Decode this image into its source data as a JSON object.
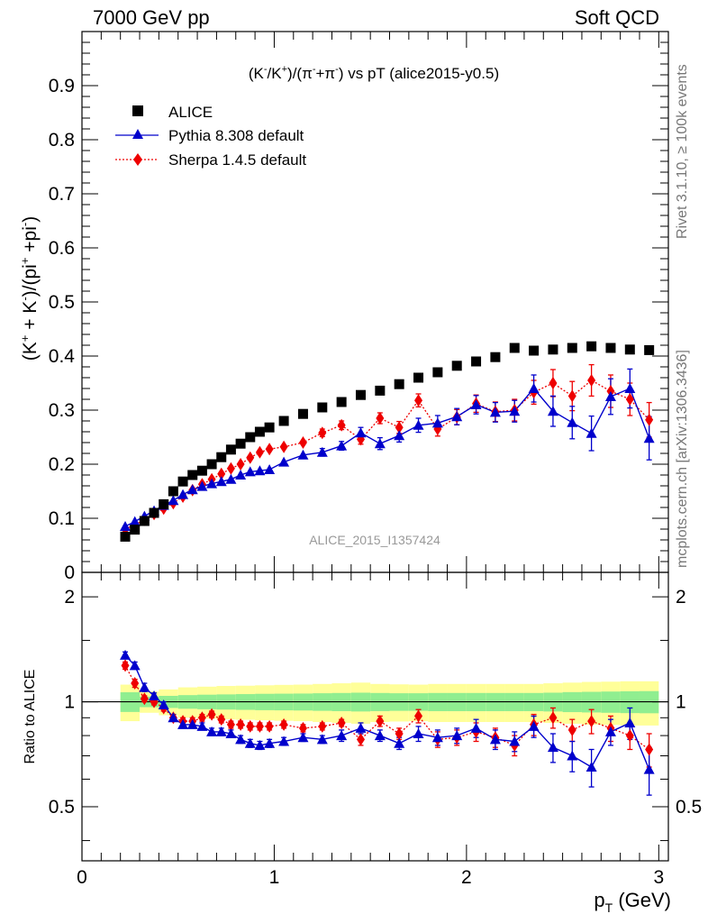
{
  "header": {
    "left": "7000 GeV pp",
    "right": "Soft QCD"
  },
  "side_labels": {
    "rivet": "Rivet 3.1.10, ≥ 100k events",
    "mcplots": "mcplots.cern.ch [arXiv:1306.3436]"
  },
  "watermark": "ALICE_2015_I1357424",
  "colors": {
    "alice": "#000000",
    "pythia": "#0000cc",
    "sherpa": "#ee0000",
    "band_inner": "#90ee90",
    "band_outer": "#ffff99"
  },
  "chart_data": [
    {
      "type": "scatter",
      "panel": "main",
      "title_parts": {
        "p1": "(K",
        "s1": "-",
        "p2": "/K",
        "s2": "+",
        "p3": ")/(π",
        "s3": "-",
        "p4": "+π",
        "s4": "-",
        "p5": ") vs pT (alice2015-y0.5)"
      },
      "ylabel_parts": {
        "p1": "(K",
        "s1": "+",
        "p2": " + K",
        "s2": "-",
        "p3": ")/(pi",
        "s3": "+",
        "p4": " +pi",
        "s4": "-",
        "p5": ")"
      },
      "xlabel_parts": {
        "p1": "p",
        "sub": "T",
        "p2": " (GeV)"
      },
      "xlim": [
        0,
        3.05
      ],
      "ylim": [
        0,
        1.0
      ],
      "x_ticks": [
        "0",
        "1",
        "2",
        "3"
      ],
      "y_ticks": [
        "0.1",
        "0.2",
        "0.3",
        "0.4",
        "0.5",
        "0.6",
        "0.7",
        "0.8",
        "0.9"
      ],
      "y_tick_zero": "0",
      "legend_position": "top-left",
      "x": [
        0.225,
        0.275,
        0.325,
        0.375,
        0.425,
        0.475,
        0.525,
        0.575,
        0.625,
        0.675,
        0.725,
        0.775,
        0.825,
        0.875,
        0.925,
        0.975,
        1.05,
        1.15,
        1.25,
        1.35,
        1.45,
        1.55,
        1.65,
        1.75,
        1.85,
        1.95,
        2.05,
        2.15,
        2.25,
        2.35,
        2.45,
        2.55,
        2.65,
        2.75,
        2.85,
        2.95
      ],
      "series": [
        {
          "name": "ALICE",
          "marker": "square",
          "values": [
            0.066,
            0.079,
            0.095,
            0.11,
            0.126,
            0.15,
            0.168,
            0.18,
            0.188,
            0.2,
            0.213,
            0.227,
            0.238,
            0.25,
            0.26,
            0.268,
            0.28,
            0.293,
            0.305,
            0.315,
            0.328,
            0.336,
            0.348,
            0.36,
            0.37,
            0.382,
            0.39,
            0.398,
            0.415,
            0.41,
            0.412,
            0.415,
            0.418,
            0.415,
            0.412,
            0.411
          ]
        },
        {
          "name": "Pythia 8.308 default",
          "marker": "triangle",
          "values": [
            0.085,
            0.094,
            0.104,
            0.114,
            0.124,
            0.133,
            0.144,
            0.153,
            0.159,
            0.164,
            0.168,
            0.172,
            0.18,
            0.186,
            0.188,
            0.19,
            0.204,
            0.217,
            0.222,
            0.234,
            0.258,
            0.238,
            0.253,
            0.272,
            0.276,
            0.288,
            0.31,
            0.296,
            0.298,
            0.34,
            0.298,
            0.277,
            0.257,
            0.325,
            0.34,
            0.248
          ],
          "errors": [
            0.002,
            0.002,
            0.002,
            0.002,
            0.002,
            0.002,
            0.002,
            0.002,
            0.003,
            0.003,
            0.003,
            0.003,
            0.003,
            0.004,
            0.004,
            0.004,
            0.005,
            0.006,
            0.007,
            0.008,
            0.01,
            0.011,
            0.012,
            0.013,
            0.014,
            0.015,
            0.017,
            0.018,
            0.02,
            0.025,
            0.028,
            0.03,
            0.032,
            0.033,
            0.036,
            0.04
          ]
        },
        {
          "name": "Sherpa 1.4.5 default",
          "marker": "diamond",
          "values": [
            0.08,
            0.088,
            0.097,
            0.108,
            0.118,
            0.128,
            0.14,
            0.152,
            0.163,
            0.172,
            0.182,
            0.192,
            0.2,
            0.212,
            0.222,
            0.228,
            0.232,
            0.24,
            0.258,
            0.272,
            0.246,
            0.285,
            0.268,
            0.318,
            0.265,
            0.287,
            0.312,
            0.297,
            0.3,
            0.333,
            0.35,
            0.326,
            0.355,
            0.335,
            0.32,
            0.282
          ],
          "errors": [
            0.002,
            0.002,
            0.002,
            0.002,
            0.002,
            0.002,
            0.002,
            0.003,
            0.003,
            0.003,
            0.003,
            0.003,
            0.004,
            0.004,
            0.004,
            0.004,
            0.005,
            0.006,
            0.007,
            0.008,
            0.009,
            0.01,
            0.011,
            0.012,
            0.013,
            0.014,
            0.016,
            0.018,
            0.02,
            0.022,
            0.025,
            0.027,
            0.029,
            0.03,
            0.03,
            0.032
          ]
        }
      ]
    },
    {
      "type": "scatter",
      "panel": "ratio",
      "ylabel": "Ratio to ALICE",
      "yscale": "log",
      "ylim": [
        0.35,
        2.35
      ],
      "y_ticks": [
        "0.5",
        "1",
        "2"
      ],
      "y_tick_values": [
        0.5,
        1,
        2
      ],
      "band_edges": [
        0.2,
        0.3,
        0.4,
        0.5,
        0.6,
        0.7,
        0.8,
        0.9,
        1.0,
        1.1,
        1.2,
        1.3,
        1.4,
        1.5,
        1.6,
        1.7,
        1.8,
        1.9,
        2.0,
        2.1,
        2.2,
        2.3,
        2.4,
        2.5,
        2.6,
        2.7,
        2.8,
        2.9,
        3.0
      ],
      "band_inner": [
        0.065,
        0.035,
        0.04,
        0.045,
        0.048,
        0.05,
        0.052,
        0.054,
        0.055,
        0.056,
        0.058,
        0.06,
        0.062,
        0.06,
        0.058,
        0.058,
        0.06,
        0.06,
        0.06,
        0.06,
        0.06,
        0.06,
        0.062,
        0.066,
        0.068,
        0.07,
        0.072,
        0.073
      ],
      "band_outer": [
        0.12,
        0.07,
        0.085,
        0.1,
        0.105,
        0.11,
        0.112,
        0.115,
        0.118,
        0.12,
        0.125,
        0.13,
        0.135,
        0.125,
        0.122,
        0.12,
        0.125,
        0.125,
        0.125,
        0.125,
        0.125,
        0.125,
        0.13,
        0.135,
        0.14,
        0.142,
        0.145,
        0.145
      ],
      "series": [
        {
          "name": "Pythia 8.308 default",
          "values": [
            1.36,
            1.27,
            1.1,
            1.04,
            0.98,
            0.9,
            0.86,
            0.86,
            0.85,
            0.82,
            0.82,
            0.81,
            0.78,
            0.76,
            0.75,
            0.76,
            0.77,
            0.79,
            0.78,
            0.8,
            0.84,
            0.8,
            0.76,
            0.81,
            0.79,
            0.8,
            0.84,
            0.78,
            0.77,
            0.85,
            0.74,
            0.7,
            0.65,
            0.82,
            0.87,
            0.64
          ],
          "errors": [
            0.03,
            0.03,
            0.03,
            0.02,
            0.02,
            0.02,
            0.02,
            0.02,
            0.02,
            0.02,
            0.02,
            0.02,
            0.02,
            0.02,
            0.02,
            0.02,
            0.02,
            0.02,
            0.02,
            0.03,
            0.03,
            0.03,
            0.03,
            0.04,
            0.04,
            0.04,
            0.05,
            0.05,
            0.05,
            0.06,
            0.07,
            0.07,
            0.08,
            0.07,
            0.09,
            0.1
          ]
        },
        {
          "name": "Sherpa 1.4.5 default",
          "values": [
            1.27,
            1.13,
            1.02,
            1.0,
            0.96,
            0.9,
            0.88,
            0.88,
            0.9,
            0.92,
            0.89,
            0.86,
            0.86,
            0.85,
            0.85,
            0.85,
            0.86,
            0.84,
            0.85,
            0.87,
            0.78,
            0.88,
            0.81,
            0.91,
            0.78,
            0.79,
            0.82,
            0.79,
            0.75,
            0.86,
            0.9,
            0.83,
            0.88,
            0.84,
            0.8,
            0.73
          ],
          "errors": [
            0.03,
            0.03,
            0.02,
            0.02,
            0.02,
            0.02,
            0.02,
            0.02,
            0.02,
            0.02,
            0.02,
            0.02,
            0.02,
            0.02,
            0.02,
            0.02,
            0.02,
            0.02,
            0.02,
            0.02,
            0.03,
            0.03,
            0.03,
            0.04,
            0.04,
            0.04,
            0.05,
            0.05,
            0.05,
            0.06,
            0.06,
            0.06,
            0.07,
            0.07,
            0.07,
            0.08
          ]
        }
      ]
    }
  ]
}
